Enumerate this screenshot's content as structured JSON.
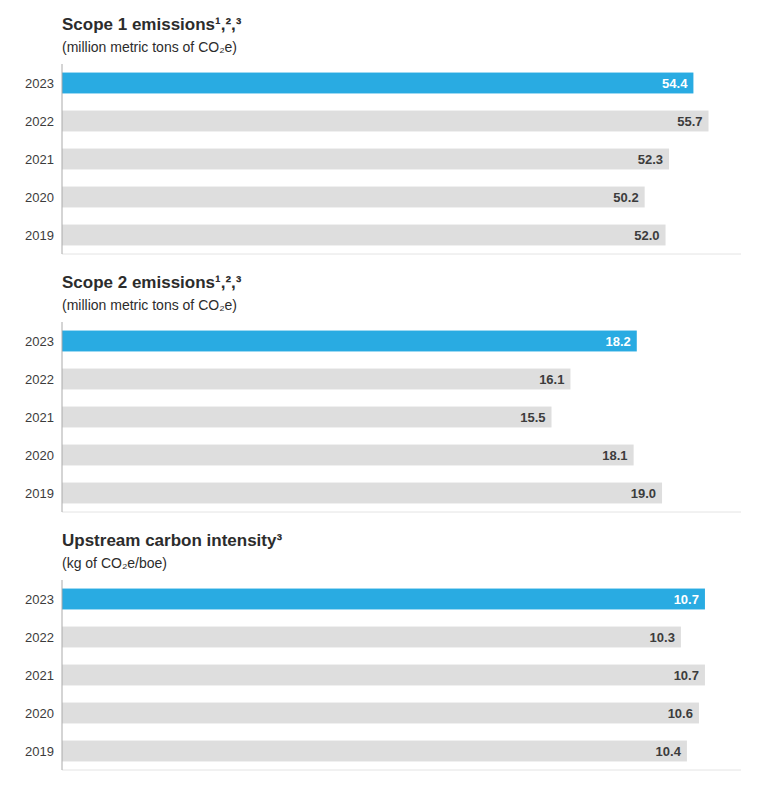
{
  "chart_data": [
    {
      "type": "bar",
      "orientation": "horizontal",
      "title": "Scope 1 emissions¹,²,³",
      "subtitle": "(million metric tons of CO₂e)",
      "categories": [
        "2023",
        "2022",
        "2021",
        "2020",
        "2019"
      ],
      "values": [
        54.4,
        55.7,
        52.3,
        50.2,
        52.0
      ],
      "value_labels": [
        "54.4",
        "55.7",
        "52.3",
        "50.2",
        "52.0"
      ],
      "colors": [
        "#29ABE2",
        "#DEDEDE",
        "#DEDEDE",
        "#DEDEDE",
        "#DEDEDE"
      ],
      "xlim": [
        0,
        58.5
      ],
      "data_labels": true,
      "tick_labels": "y",
      "grid": false
    },
    {
      "type": "bar",
      "orientation": "horizontal",
      "title": "Scope 2 emissions¹,²,³",
      "subtitle": "(million metric tons of CO₂e)",
      "categories": [
        "2023",
        "2022",
        "2021",
        "2020",
        "2019"
      ],
      "values": [
        18.2,
        16.1,
        15.5,
        18.1,
        19.0
      ],
      "value_labels": [
        "18.2",
        "16.1",
        "15.5",
        "18.1",
        "19.0"
      ],
      "colors": [
        "#29ABE2",
        "#DEDEDE",
        "#DEDEDE",
        "#DEDEDE",
        "#DEDEDE"
      ],
      "xlim": [
        0,
        21.5
      ],
      "data_labels": true,
      "tick_labels": "y",
      "grid": false
    },
    {
      "type": "bar",
      "orientation": "horizontal",
      "title": "Upstream carbon intensity³",
      "subtitle": "(kg of CO₂e/boe)",
      "categories": [
        "2023",
        "2022",
        "2021",
        "2020",
        "2019"
      ],
      "values": [
        10.7,
        10.3,
        10.7,
        10.6,
        10.4
      ],
      "value_labels": [
        "10.7",
        "10.3",
        "10.7",
        "10.6",
        "10.4"
      ],
      "colors": [
        "#29ABE2",
        "#DEDEDE",
        "#DEDEDE",
        "#DEDEDE",
        "#DEDEDE"
      ],
      "xlim": [
        0,
        11.3
      ],
      "data_labels": true,
      "tick_labels": "y",
      "grid": false
    }
  ]
}
